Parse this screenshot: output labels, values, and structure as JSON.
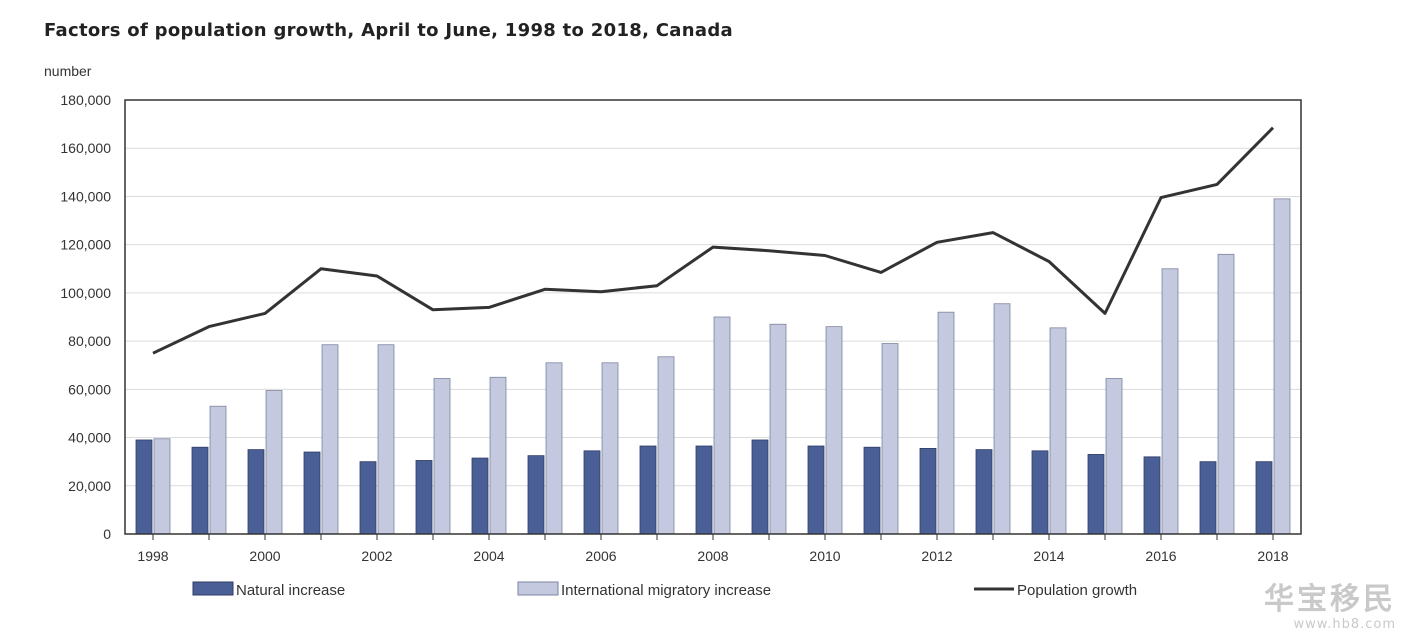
{
  "chart_data": {
    "type": "bar",
    "title": "Factors of population growth, April to June, 1998 to 2018, Canada",
    "ylabel": "number",
    "xlabel": "",
    "ylim": [
      0,
      180000
    ],
    "yticks": [
      0,
      20000,
      40000,
      60000,
      80000,
      100000,
      120000,
      140000,
      160000,
      180000
    ],
    "ytick_labels": [
      "0",
      "20,000",
      "40,000",
      "60,000",
      "80,000",
      "100,000",
      "120,000",
      "140,000",
      "160,000",
      "180,000"
    ],
    "categories": [
      "1998",
      "1999",
      "2000",
      "2001",
      "2002",
      "2003",
      "2004",
      "2005",
      "2006",
      "2007",
      "2008",
      "2009",
      "2010",
      "2011",
      "2012",
      "2013",
      "2014",
      "2015",
      "2016",
      "2017",
      "2018"
    ],
    "xtick_labels": [
      "1998",
      "2000",
      "2002",
      "2004",
      "2006",
      "2008",
      "2010",
      "2012",
      "2014",
      "2016",
      "2018"
    ],
    "series": [
      {
        "name": "Natural increase",
        "kind": "bar",
        "color": "#4a5f96",
        "values": [
          39000,
          36000,
          35000,
          34000,
          30000,
          30500,
          31500,
          32500,
          34500,
          36500,
          36500,
          39000,
          36500,
          36000,
          35500,
          35000,
          34500,
          33000,
          32000,
          30000,
          30000
        ]
      },
      {
        "name": "International migratory increase",
        "kind": "bar",
        "color": "#c4c9df",
        "values": [
          39500,
          53000,
          59500,
          78500,
          78500,
          64500,
          65000,
          71000,
          71000,
          73500,
          90000,
          87000,
          86000,
          79000,
          92000,
          95500,
          85500,
          64500,
          110000,
          116000,
          139000
        ]
      },
      {
        "name": "Population growth",
        "kind": "line",
        "color": "#333333",
        "values": [
          75000,
          86000,
          91500,
          110000,
          107000,
          93000,
          94000,
          101500,
          100500,
          103000,
          119000,
          117500,
          115500,
          108500,
          121000,
          125000,
          113000,
          91500,
          139500,
          145000,
          168500
        ]
      }
    ],
    "legend_placement": "bottom",
    "grid": true
  },
  "watermark": {
    "main": "华宝移民",
    "sub": "www.hb8.com"
  }
}
